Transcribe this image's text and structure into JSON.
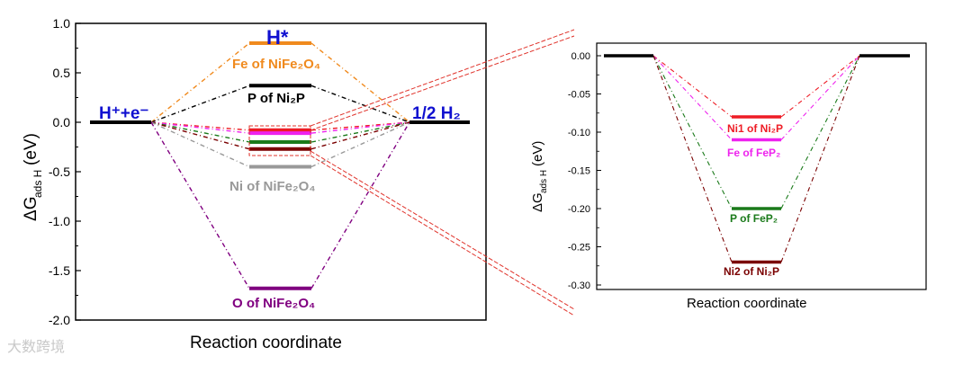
{
  "chart_data": [
    {
      "type": "line",
      "panel": "left",
      "xlabel": "Reaction coordinate",
      "ylabel_main": "ΔG",
      "ylabel_sub": "ads H",
      "ylabel_unit": "(eV)",
      "ylim": [
        -2.0,
        1.0
      ],
      "yticks": [
        "1.0",
        "0.5",
        "0.0",
        "-0.5",
        "-1.0",
        "-1.5",
        "-2.0"
      ],
      "ytick_values": [
        1.0,
        0.5,
        0.0,
        -0.5,
        -1.0,
        -1.5,
        -2.0
      ],
      "states": {
        "start": {
          "value": 0.0,
          "label": "H⁺+e⁻"
        },
        "end": {
          "value": 0.0,
          "label": "1/2 H₂"
        },
        "middle_label": "H*"
      },
      "series": [
        {
          "name": "Fe of NiFe₂O₄",
          "value": 0.8,
          "color": "#f08a1e"
        },
        {
          "name": "P of Ni₂P",
          "value": 0.37,
          "color": "#000000"
        },
        {
          "name": "Ni1 of Ni₂P",
          "value": -0.08,
          "color": "#ee1c25"
        },
        {
          "name": "Fe of FeP₂",
          "value": -0.11,
          "color": "#ee22ee"
        },
        {
          "name": "P of FeP₂",
          "value": -0.2,
          "color": "#1a7a1a"
        },
        {
          "name": "Ni2 of Ni₂P",
          "value": -0.27,
          "color": "#7a0000"
        },
        {
          "name": "Ni of NiFe₂O₄",
          "value": -0.45,
          "color": "#999999"
        },
        {
          "name": "O of NiFe₂O₄",
          "value": -1.68,
          "color": "#800080"
        }
      ],
      "visible_level_labels": [
        "Fe of NiFe₂O₄",
        "P of Ni₂P",
        "Ni of NiFe₂O₄",
        "O of NiFe₂O₄"
      ]
    },
    {
      "type": "line",
      "panel": "right-inset",
      "xlabel": "Reaction coordinate",
      "ylabel_main": "ΔG",
      "ylabel_sub": "ads H",
      "ylabel_unit": "(eV)",
      "ylim": [
        -0.3,
        0.0
      ],
      "yticks": [
        "0.00",
        "-0.05",
        "-0.10",
        "-0.15",
        "-0.20",
        "-0.25",
        "-0.30"
      ],
      "ytick_values": [
        0.0,
        -0.05,
        -0.1,
        -0.15,
        -0.2,
        -0.25,
        -0.3
      ],
      "series": [
        {
          "name": "Ni1 of Ni₂P",
          "value": -0.08,
          "color": "#ee1c25"
        },
        {
          "name": "Fe of FeP₂",
          "value": -0.11,
          "color": "#ee22ee"
        },
        {
          "name": "P of FeP₂",
          "value": -0.2,
          "color": "#1a7a1a"
        },
        {
          "name": "Ni2 of Ni₂P",
          "value": -0.27,
          "color": "#7a0000"
        }
      ]
    }
  ],
  "watermark": "大数跨境"
}
